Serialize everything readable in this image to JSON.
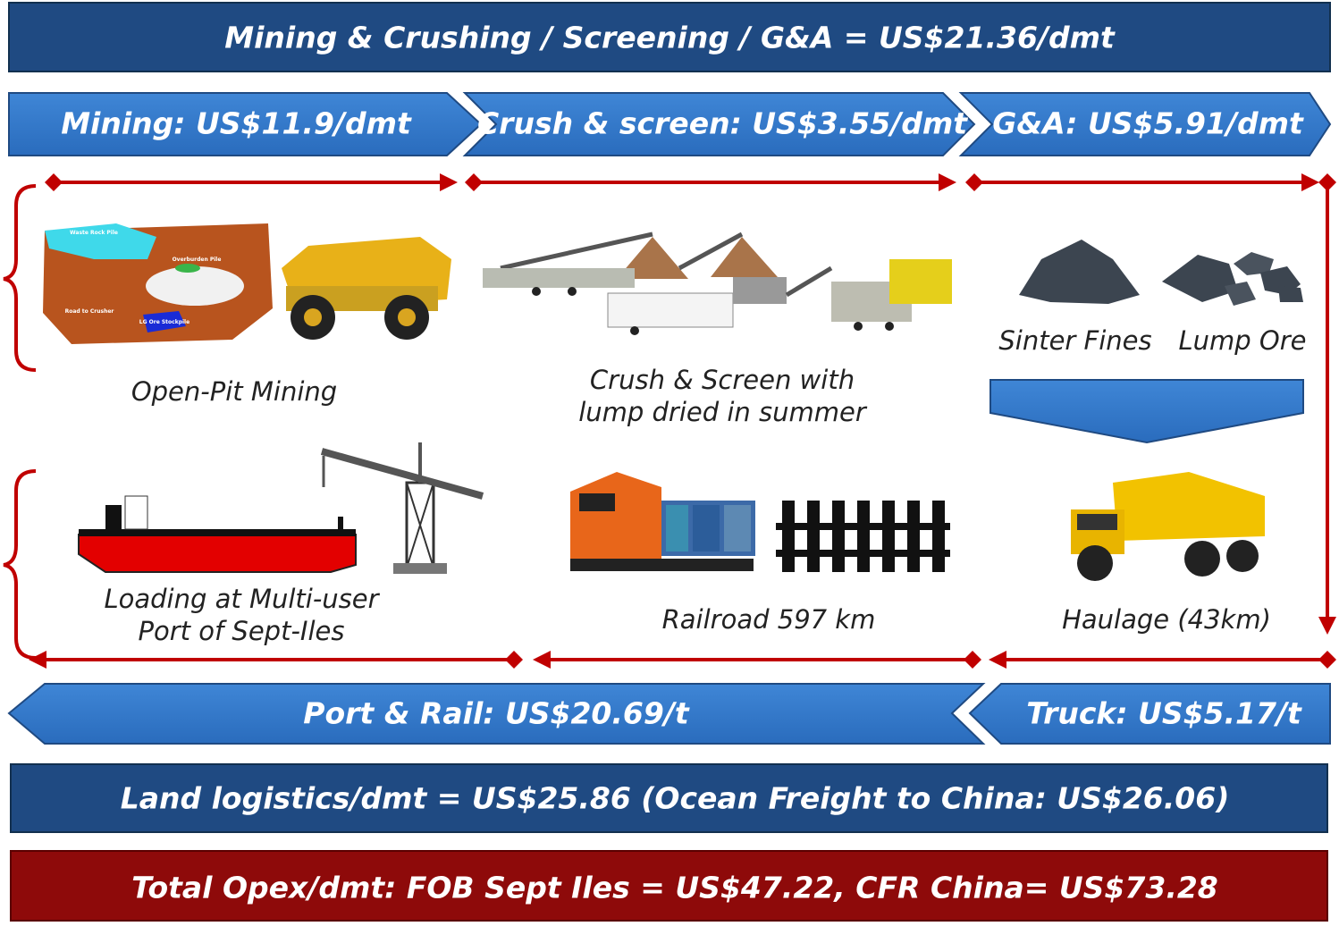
{
  "header": {
    "title": "Mining & Crushing / Screening / G&A =  US$21.36/dmt"
  },
  "cost_stages": [
    {
      "label": "Mining: US$11.9/dmt"
    },
    {
      "label": "Crush & screen: US$3.55/dmt"
    },
    {
      "label": "G&A: US$5.91/dmt"
    }
  ],
  "mine_map": {
    "labels": [
      "Waste Rock Pile",
      "Overburden Pile",
      "Road to Crusher",
      "LG Ore Stockpile"
    ]
  },
  "steps": {
    "mining": {
      "label": "Open-Pit Mining"
    },
    "crushing": {
      "lines": [
        "Crush & Screen with",
        "lump dried in summer"
      ]
    },
    "products": [
      "Sinter Fines",
      "Lump Ore"
    ],
    "port": {
      "lines": [
        "Loading at Multi-user",
        "Port of Sept-Iles"
      ]
    },
    "rail": {
      "label": "Railroad 597 km"
    },
    "haulage": {
      "label": "Haulage (43km)"
    }
  },
  "logistics_stages": [
    {
      "label": "Port & Rail: US$20.69/t"
    },
    {
      "label": "Truck: US$5.17/t"
    }
  ],
  "land_logistics": {
    "label": "Land logistics/dmt =  US$25.86 (Ocean Freight to China: US$26.06)"
  },
  "total": {
    "label": "Total Opex/dmt: FOB Sept Iles = US$47.22, CFR China= US$73.28"
  }
}
